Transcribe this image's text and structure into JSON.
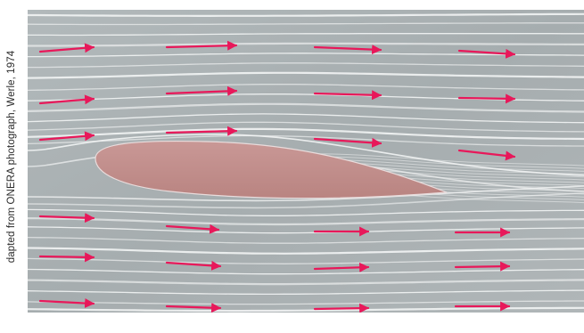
{
  "figure": {
    "credit": "dapted from ONERA photograph, Werle, 1974"
  },
  "photo": {
    "subject": "airfoil-in-flow-visualization",
    "colors": {
      "background": "#a9b0b2",
      "streamline": "#f2f4f4",
      "airfoil": "#c88c8a",
      "arrow": "#e8185a"
    }
  }
}
